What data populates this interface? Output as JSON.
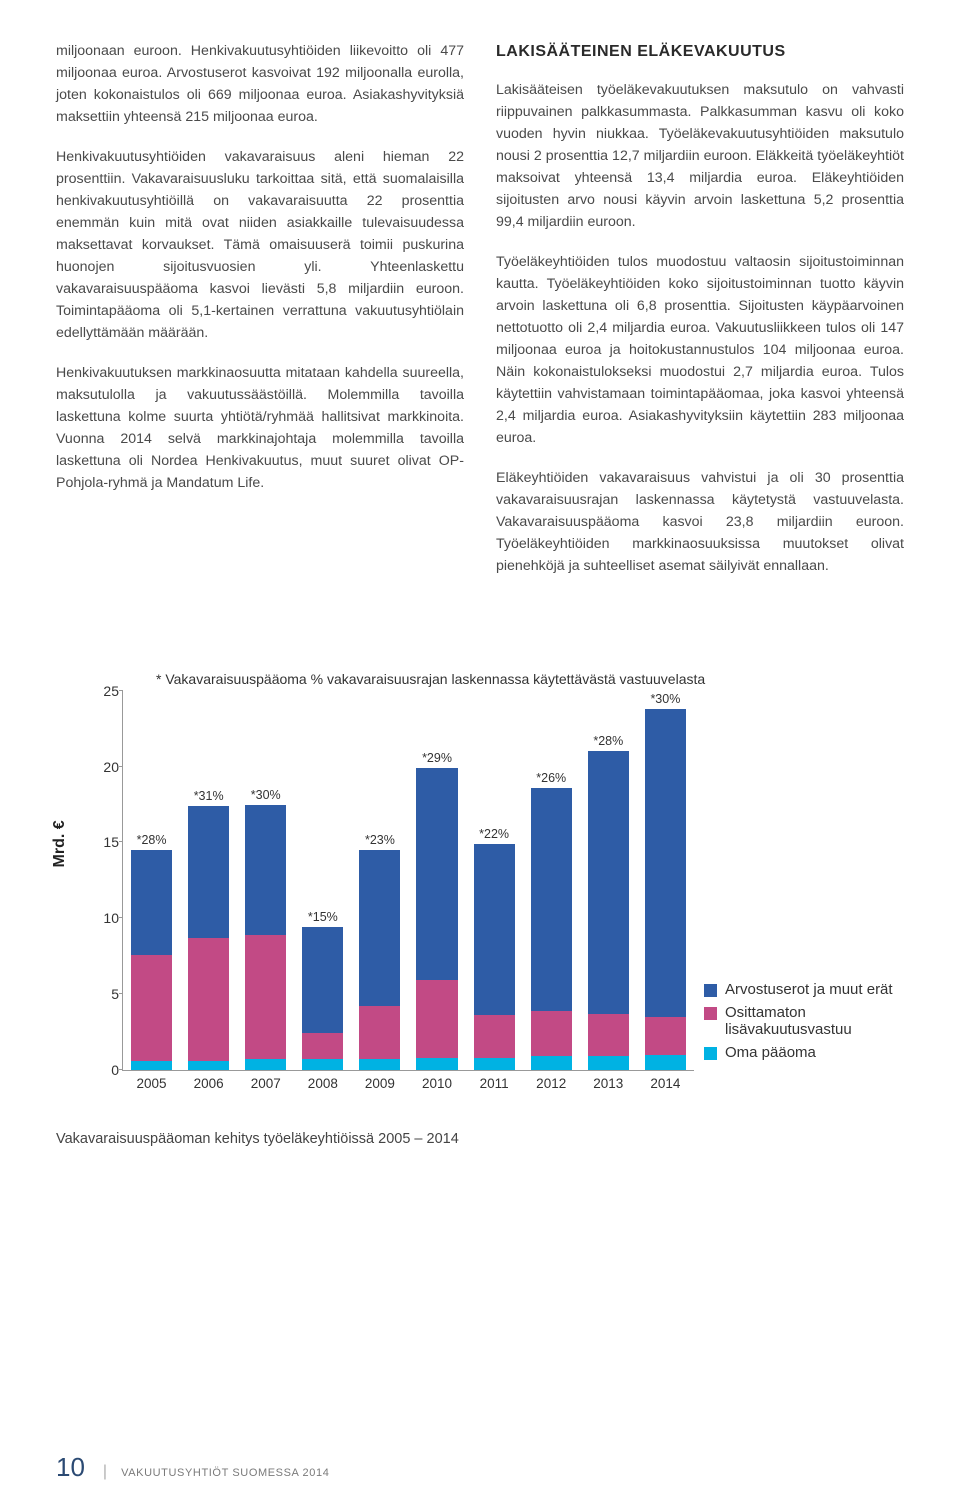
{
  "left_col": {
    "p1": "miljoonaan euroon. Henkivakuutusyhtiöiden liikevoitto oli 477 miljoonaa euroa. Arvostuserot kasvoivat 192 miljoonalla eurolla, joten kokonaistulos oli 669 miljoonaa euroa. Asiakashyvityksiä maksettiin yhteensä 215 miljoonaa euroa.",
    "p2": "Henkivakuutusyhtiöiden vakavaraisuus aleni hieman 22 prosenttiin. Vakavaraisuusluku tarkoittaa sitä, että suomalaisilla henkivakuutusyhtiöillä on vakavaraisuutta 22 prosenttia enemmän kuin mitä ovat niiden asiakkaille tulevaisuudessa maksettavat korvaukset. Tämä omaisuuserä toimii puskurina huonojen sijoitusvuosien yli. Yhteenlaskettu vakavaraisuuspääoma kasvoi lievästi 5,8 miljardiin euroon. Toimintapääoma oli 5,1-kertainen verrattuna vakuutusyhtiölain edellyttämään määrään.",
    "p3": "Henkivakuutuksen markkinaosuutta mitataan kahdella suureella, maksutulolla ja vakuutussäästöillä. Molemmilla tavoilla laskettuna kolme suurta yhtiötä/ryhmää hallitsivat markkinoita. Vuonna 2014 selvä markkinajohtaja molemmilla tavoilla laskettuna oli Nordea Henkivakuutus, muut suuret olivat OP-Pohjola-ryhmä ja Mandatum Life."
  },
  "right_col": {
    "heading": "LAKISÄÄTEINEN ELÄKEVAKUUTUS",
    "p1": "Lakisääteisen työeläkevakuutuksen maksutulo on vahvasti riippuvainen palkkasummasta. Palkkasumman kasvu oli koko vuoden hyvin niukkaa. Työeläkevakuutusyhtiöiden maksutulo nousi 2 prosenttia 12,7 miljardiin euroon. Eläkkeitä työeläkeyhtiöt maksoivat yhteensä 13,4 miljardia euroa. Eläkeyhtiöiden sijoitusten arvo nousi käyvin arvoin laskettuna 5,2 prosenttia 99,4 miljardiin euroon.",
    "p2": "Työeläkeyhtiöiden tulos muodostuu valtaosin sijoitustoiminnan kautta. Työeläkeyhtiöiden koko sijoitustoiminnan tuotto käyvin arvoin laskettuna oli 6,8 prosenttia. Sijoitusten käypäarvoinen nettotuotto oli 2,4 miljardia euroa. Vakuutusliikkeen tulos oli 147 miljoonaa euroa ja hoitokustannustulos 104 miljoonaa euroa. Näin kokonaistulokseksi muodostui 2,7 miljardia euroa. Tulos käytettiin vahvistamaan toimintapääomaa, joka kasvoi yhteensä 2,4 miljardia euroa. Asiakashyvityksiin käytettiin 283 miljoonaa euroa.",
    "p3": "Eläkeyhtiöiden vakavaraisuus vahvistui ja oli 30 prosenttia vakavaraisuusrajan laskennassa käytetystä vastuuvelasta. Vakavaraisuuspääoma kasvoi 23,8 miljardiin euroon. Työeläkeyhtiöiden markkinaosuuksissa muutokset olivat pienehköjä ja suhteelliset asemat säilyivät ennallaan."
  },
  "chart": {
    "title": "* Vakavaraisuuspääoma % vakavaraisuusrajan laskennassa käytettävästä vastuuvelasta",
    "yaxis": "Mrd. €",
    "ymax": 25,
    "yticks": [
      0,
      5,
      10,
      15,
      20,
      25
    ],
    "years": [
      "2005",
      "2006",
      "2007",
      "2008",
      "2009",
      "2010",
      "2011",
      "2012",
      "2013",
      "2014"
    ],
    "labels": [
      "*28%",
      "*31%",
      "*30%",
      "*15%",
      "*23%",
      "*29%",
      "*22%",
      "*26%",
      "*28%",
      "*30%"
    ],
    "series": {
      "oma": [
        0.6,
        0.6,
        0.7,
        0.7,
        0.7,
        0.8,
        0.8,
        0.9,
        0.9,
        1.0
      ],
      "lisa": [
        7.0,
        8.1,
        8.2,
        1.7,
        3.5,
        5.1,
        2.8,
        3.0,
        2.8,
        2.5
      ],
      "arvo": [
        6.9,
        8.7,
        8.6,
        7.0,
        10.3,
        14.0,
        11.3,
        14.7,
        17.3,
        20.3
      ]
    },
    "colors": {
      "oma": "#00b2e3",
      "lisa": "#c24a85",
      "arvo": "#2e5ca6",
      "axis": "#999999",
      "text": "#333333"
    },
    "legend": [
      {
        "label": "Arvostuserot ja muut erät",
        "key": "arvo"
      },
      {
        "label": "Osittamaton lisävakuutusvastuu",
        "key": "lisa"
      },
      {
        "label": "Oma pääoma",
        "key": "oma"
      }
    ],
    "caption": "Vakavaraisuuspääoman kehitys työeläkeyhtiöissä 2005 – 2014"
  },
  "footer": {
    "page": "10",
    "text": "VAKUUTUSYHTIÖT SUOMESSA 2014"
  }
}
